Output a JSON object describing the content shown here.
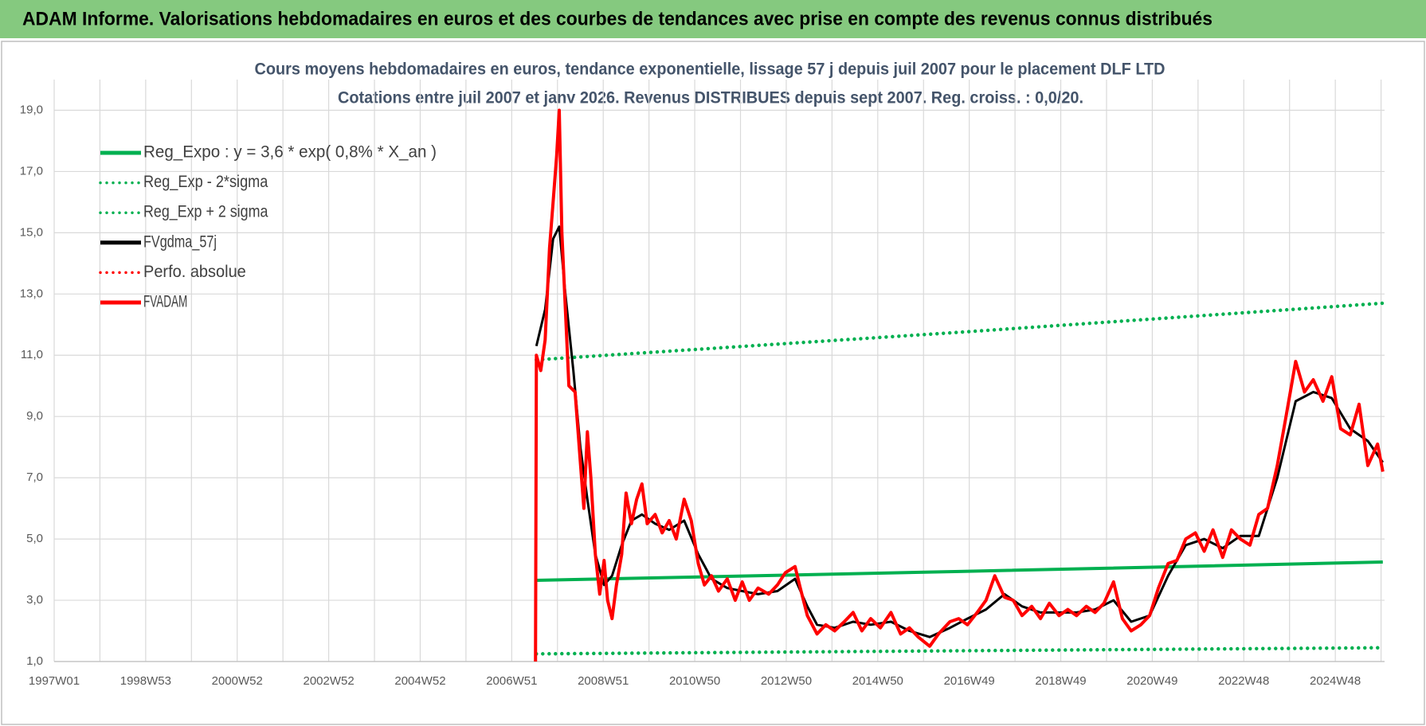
{
  "header": {
    "title": "ADAM Informe. Valorisations hebdomadaires en euros et des courbes de tendances avec prise en compte des revenus connus distribués"
  },
  "chart_data": {
    "type": "line",
    "title": "Cours moyens hebdomadaires en euros, tendance exponentielle, lissage 57 j depuis juil 2007 pour le placement DLF LTD",
    "subtitle": "Cotations entre juil 2007 et janv 2026. Revenus DISTRIBUES depuis sept 2007. Reg. croiss. : 0,0/20.",
    "xlim": [
      0,
      1512
    ],
    "xticks": [
      {
        "value": 0,
        "label": "1997W01"
      },
      {
        "value": 104,
        "label": "1998W53"
      },
      {
        "value": 208,
        "label": "2000W52"
      },
      {
        "value": 312,
        "label": "2002W52"
      },
      {
        "value": 416,
        "label": "2004W52"
      },
      {
        "value": 520,
        "label": "2006W51"
      },
      {
        "value": 624,
        "label": "2008W51"
      },
      {
        "value": 728,
        "label": "2010W50"
      },
      {
        "value": 832,
        "label": "2012W50"
      },
      {
        "value": 936,
        "label": "2014W50"
      },
      {
        "value": 1040,
        "label": "2016W49"
      },
      {
        "value": 1144,
        "label": "2018W49"
      },
      {
        "value": 1248,
        "label": "2020W49"
      },
      {
        "value": 1352,
        "label": "2022W48"
      },
      {
        "value": 1456,
        "label": "2024W48"
      }
    ],
    "xgrid": [
      52,
      156,
      260,
      364,
      468,
      572,
      676,
      780,
      884,
      988,
      1092,
      1196,
      1300,
      1404,
      1508
    ],
    "ylim": [
      1,
      20
    ],
    "yticks": [
      {
        "value": 1,
        "label": "1,0"
      },
      {
        "value": 3,
        "label": "3,0"
      },
      {
        "value": 5,
        "label": "5,0"
      },
      {
        "value": 7,
        "label": "7,0"
      },
      {
        "value": 9,
        "label": "9,0"
      },
      {
        "value": 11,
        "label": "11,0"
      },
      {
        "value": 13,
        "label": "13,0"
      },
      {
        "value": 15,
        "label": "15,0"
      },
      {
        "value": 17,
        "label": "17,0"
      },
      {
        "value": 19,
        "label": "19,0"
      }
    ],
    "grid": true,
    "legend": "upper left",
    "series": [
      {
        "name": "Reg_Expo : y = 3,6 * exp( 0,8% *  X_an )",
        "color": "#00b050",
        "style": "solid",
        "x": [
          548,
          1029,
          1510
        ],
        "values": [
          3.65,
          3.94,
          4.25
        ]
      },
      {
        "name": "Reg_Exp - 2*sigma",
        "color": "#00b050",
        "style": "dotted",
        "x": [
          548,
          1029,
          1510
        ],
        "values": [
          1.25,
          1.35,
          1.45
        ]
      },
      {
        "name": "Reg_Exp + 2 sigma",
        "color": "#00b050",
        "style": "dotted",
        "x": [
          548,
          1029,
          1510
        ],
        "values": [
          10.85,
          11.75,
          12.7
        ]
      },
      {
        "name": "FVgdma_57j",
        "color": "#000000",
        "style": "solid",
        "x": [
          548,
          558,
          567,
          574,
          581,
          590,
          598,
          606,
          615,
          625,
          634,
          645,
          656,
          668,
          683,
          699,
          716,
          732,
          747,
          765,
          782,
          800,
          822,
          842,
          856,
          867,
          887,
          908,
          928,
          951,
          972,
          995,
          1018,
          1038,
          1059,
          1080,
          1100,
          1121,
          1142,
          1162,
          1183,
          1204,
          1224,
          1245,
          1266,
          1286,
          1307,
          1328,
          1348,
          1369,
          1390,
          1411,
          1431,
          1452,
          1473,
          1493,
          1510
        ],
        "values": [
          11.3,
          12.5,
          14.8,
          15.2,
          13.0,
          10.5,
          8.0,
          6.3,
          4.5,
          3.5,
          3.8,
          4.8,
          5.6,
          5.8,
          5.5,
          5.3,
          5.6,
          4.5,
          3.7,
          3.4,
          3.3,
          3.2,
          3.3,
          3.7,
          2.8,
          2.2,
          2.1,
          2.3,
          2.2,
          2.3,
          2.0,
          1.8,
          2.1,
          2.4,
          2.7,
          3.2,
          2.8,
          2.6,
          2.6,
          2.6,
          2.7,
          3.0,
          2.3,
          2.5,
          3.8,
          4.8,
          5.0,
          4.7,
          5.1,
          5.1,
          7.0,
          9.5,
          9.8,
          9.6,
          8.6,
          8.2,
          7.5
        ]
      },
      {
        "name": "Perfo. absolue",
        "color": "#ff0000",
        "style": "dotted",
        "x": [],
        "values": []
      },
      {
        "name": "FVADAM",
        "color": "#ff0000",
        "style": "solid",
        "x": [
          547,
          548,
          553,
          558,
          563,
          567,
          571,
          574,
          577,
          581,
          585,
          592,
          598,
          602,
          606,
          610,
          615,
          620,
          625,
          629,
          634,
          639,
          645,
          650,
          656,
          662,
          668,
          674,
          683,
          691,
          699,
          707,
          716,
          724,
          732,
          739,
          747,
          755,
          765,
          774,
          782,
          790,
          800,
          812,
          822,
          831,
          842,
          848,
          856,
          867,
          877,
          887,
          898,
          908,
          918,
          928,
          939,
          951,
          962,
          972,
          982,
          995,
          1005,
          1018,
          1028,
          1038,
          1049,
          1059,
          1069,
          1080,
          1090,
          1100,
          1111,
          1121,
          1131,
          1142,
          1152,
          1162,
          1173,
          1183,
          1193,
          1204,
          1214,
          1224,
          1235,
          1245,
          1255,
          1266,
          1276,
          1286,
          1297,
          1307,
          1317,
          1328,
          1338,
          1348,
          1359,
          1369,
          1379,
          1390,
          1400,
          1411,
          1421,
          1431,
          1442,
          1452,
          1462,
          1473,
          1483,
          1493,
          1504,
          1510
        ],
        "values": [
          1.0,
          11.0,
          10.5,
          11.5,
          14.5,
          16.0,
          17.5,
          19.0,
          15.0,
          12.5,
          10.0,
          9.8,
          7.5,
          6.0,
          8.5,
          7.0,
          4.5,
          3.2,
          4.3,
          3.0,
          2.4,
          3.5,
          4.5,
          6.5,
          5.5,
          6.3,
          6.8,
          5.5,
          5.8,
          5.2,
          5.6,
          5.0,
          6.3,
          5.6,
          4.2,
          3.5,
          3.8,
          3.3,
          3.7,
          3.0,
          3.6,
          3.0,
          3.4,
          3.2,
          3.5,
          3.9,
          4.1,
          3.4,
          2.5,
          1.9,
          2.2,
          2.0,
          2.3,
          2.6,
          2.0,
          2.4,
          2.1,
          2.6,
          1.9,
          2.1,
          1.8,
          1.5,
          1.9,
          2.3,
          2.4,
          2.2,
          2.6,
          3.0,
          3.8,
          3.1,
          3.0,
          2.5,
          2.8,
          2.4,
          2.9,
          2.5,
          2.7,
          2.5,
          2.8,
          2.6,
          2.9,
          3.6,
          2.4,
          2.0,
          2.2,
          2.5,
          3.4,
          4.2,
          4.3,
          5.0,
          5.2,
          4.6,
          5.3,
          4.4,
          5.3,
          5.0,
          4.8,
          5.8,
          6.0,
          7.4,
          9.0,
          10.8,
          9.8,
          10.2,
          9.5,
          10.3,
          8.6,
          8.4,
          9.4,
          7.4,
          8.1,
          7.2
        ]
      }
    ]
  }
}
